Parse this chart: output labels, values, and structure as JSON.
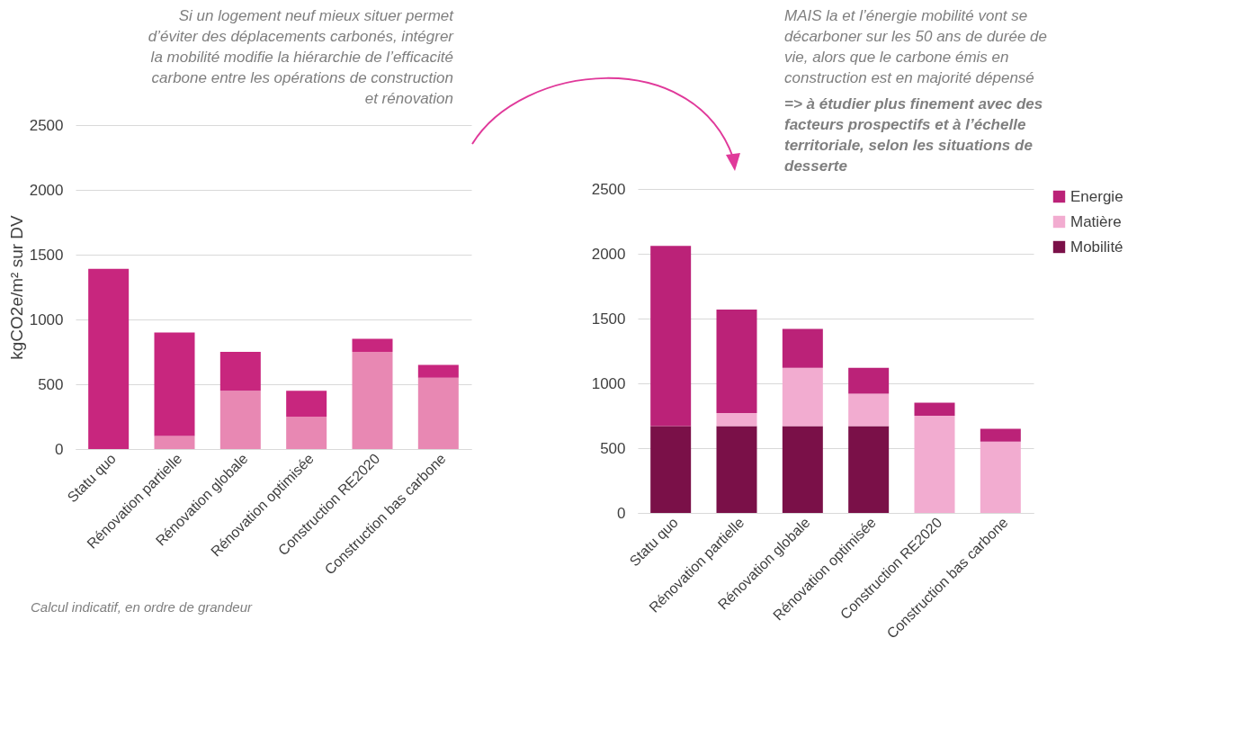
{
  "chart_data": [
    {
      "type": "bar",
      "stacked": true,
      "categories": [
        "Statu quo",
        "Rénovation partielle",
        "Rénovation globale",
        "Rénovation optimisée",
        "Construction RE2020",
        "Construction bas carbone"
      ],
      "series": [
        {
          "color": "#e888b3",
          "values": [
            0,
            100,
            450,
            250,
            750,
            550
          ]
        },
        {
          "color": "#c8267e",
          "values": [
            1390,
            800,
            300,
            200,
            100,
            100
          ]
        }
      ],
      "ylim": [
        0,
        2500
      ],
      "yticks": [
        0,
        500,
        1000,
        1500,
        2000,
        2500
      ],
      "grid": "y",
      "ylabel": "kgCO2e/m² sur DV",
      "annotations": [
        "Si un logement neuf mieux situer permet d’éviter des déplacements carbonés, intégrer la mobilité modifie la hiérarchie de l’efficacité carbone entre les opérations de construction et rénovation",
        "Calcul indicatif, en ordre de grandeur"
      ]
    },
    {
      "type": "bar",
      "stacked": true,
      "categories": [
        "Statu quo",
        "Rénovation partielle",
        "Rénovation globale",
        "Rénovation optimisée",
        "Construction RE2020",
        "Construction bas carbone"
      ],
      "series": [
        {
          "name": "Mobilité",
          "color": "#7a1048",
          "values": [
            670,
            670,
            670,
            670,
            0,
            0
          ]
        },
        {
          "name": "Matière",
          "color": "#f2acd0",
          "values": [
            0,
            100,
            450,
            250,
            750,
            550
          ]
        },
        {
          "name": "Energie",
          "color": "#bb2278",
          "values": [
            1390,
            800,
            300,
            200,
            100,
            100
          ]
        }
      ],
      "ylim": [
        0,
        2500
      ],
      "yticks": [
        0,
        500,
        1000,
        1500,
        2000,
        2500
      ],
      "grid": "y",
      "legend": "right",
      "annotations": [
        "MAIS la et l’énergie mobilité vont se décarboner sur les 50 ans de durée de vie, alors que le carbone émis en construction est en majorité dépensé",
        "=> à étudier plus finement avec des facteurs prospectifs et à l’échelle territoriale, selon les situations de desserte"
      ]
    }
  ]
}
